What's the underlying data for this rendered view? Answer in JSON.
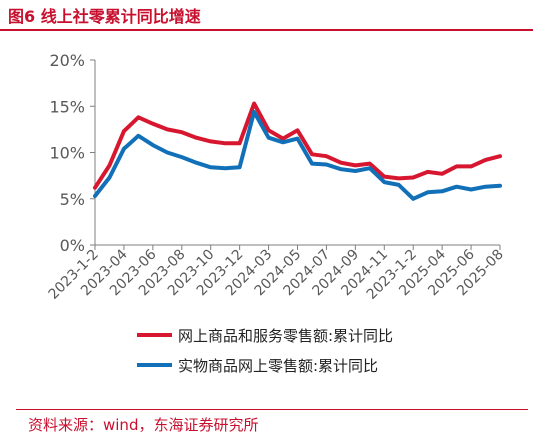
{
  "header": {
    "title": "图6  线上社零累计同比增速"
  },
  "footer": {
    "source": "资料来源：wind，东海证券研究所"
  },
  "colors": {
    "accent": "#c8102e",
    "series_online_goods": "#d7172f",
    "series_physical_goods": "#1170b7"
  },
  "chart_data": {
    "type": "line",
    "title": "",
    "xlabel": "",
    "ylabel": "",
    "ylim": [
      0,
      20
    ],
    "y_ticks": [
      "0%",
      "5%",
      "10%",
      "15%",
      "20%"
    ],
    "grid": false,
    "legend_position": "bottom",
    "x": [
      "2023-1-2",
      "2023-03",
      "2023-04",
      "2023-05",
      "2023-06",
      "2023-07",
      "2023-08",
      "2023-09",
      "2023-10",
      "2023-11",
      "2023-12",
      "2024-1-2",
      "2024-03",
      "2024-04",
      "2024-05",
      "2024-06",
      "2024-07",
      "2024-08",
      "2024-09",
      "2024-10",
      "2024-11",
      "2024-12",
      "2023-1-2",
      "2025-03",
      "2025-04",
      "2025-05",
      "2025-06",
      "2025-07",
      "2025-08"
    ],
    "x_tick_labels": [
      "2023-1-2",
      "2023-04",
      "2023-06",
      "2023-08",
      "2023-10",
      "2023-12",
      "2024-03",
      "2024-05",
      "2024-07",
      "2024-09",
      "2024-11",
      "2023-1-2",
      "2025-04",
      "2025-06",
      "2025-08"
    ],
    "series": [
      {
        "name": "网上商品和服务零售额:累计同比",
        "values": [
          6.2,
          8.6,
          12.3,
          13.8,
          13.1,
          12.5,
          12.2,
          11.6,
          11.2,
          11.0,
          11.0,
          15.3,
          12.4,
          11.5,
          12.4,
          9.8,
          9.6,
          8.9,
          8.6,
          8.8,
          7.4,
          7.2,
          7.3,
          7.9,
          7.7,
          8.5,
          8.5,
          9.2,
          9.6
        ]
      },
      {
        "name": "实物商品网上零售额:累计同比",
        "values": [
          5.3,
          7.3,
          10.4,
          11.8,
          10.8,
          10.0,
          9.5,
          8.9,
          8.4,
          8.3,
          8.4,
          14.4,
          11.6,
          11.1,
          11.5,
          8.8,
          8.7,
          8.2,
          8.0,
          8.3,
          6.8,
          6.5,
          5.0,
          5.7,
          5.8,
          6.3,
          6.0,
          6.3,
          6.4
        ]
      }
    ]
  }
}
